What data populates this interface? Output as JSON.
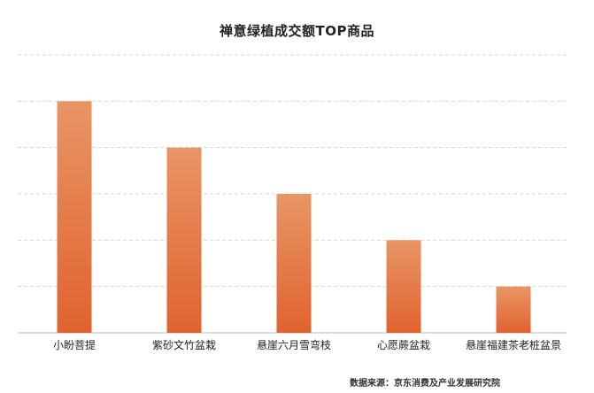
{
  "chart_data": {
    "type": "bar",
    "title": "禅意绿植成交额TOP商品",
    "categories": [
      "小盼菩提",
      "紫砂文竹盆栽",
      "悬崖六月雪弯枝",
      "心愿蕨盆栽",
      "悬崖福建茶老桩盆景"
    ],
    "values": [
      5,
      4,
      3,
      2,
      1
    ],
    "ylim": [
      0,
      6
    ],
    "grid": true,
    "xlabel": "",
    "ylabel": "",
    "source": "数据来源：京东消费及产业发展研究院",
    "colors": {
      "bar_top": "#e89565",
      "bar_bottom": "#e0632f",
      "grid": "#d6d6d6",
      "axis": "#bbbbbb",
      "text": "#222222"
    }
  }
}
